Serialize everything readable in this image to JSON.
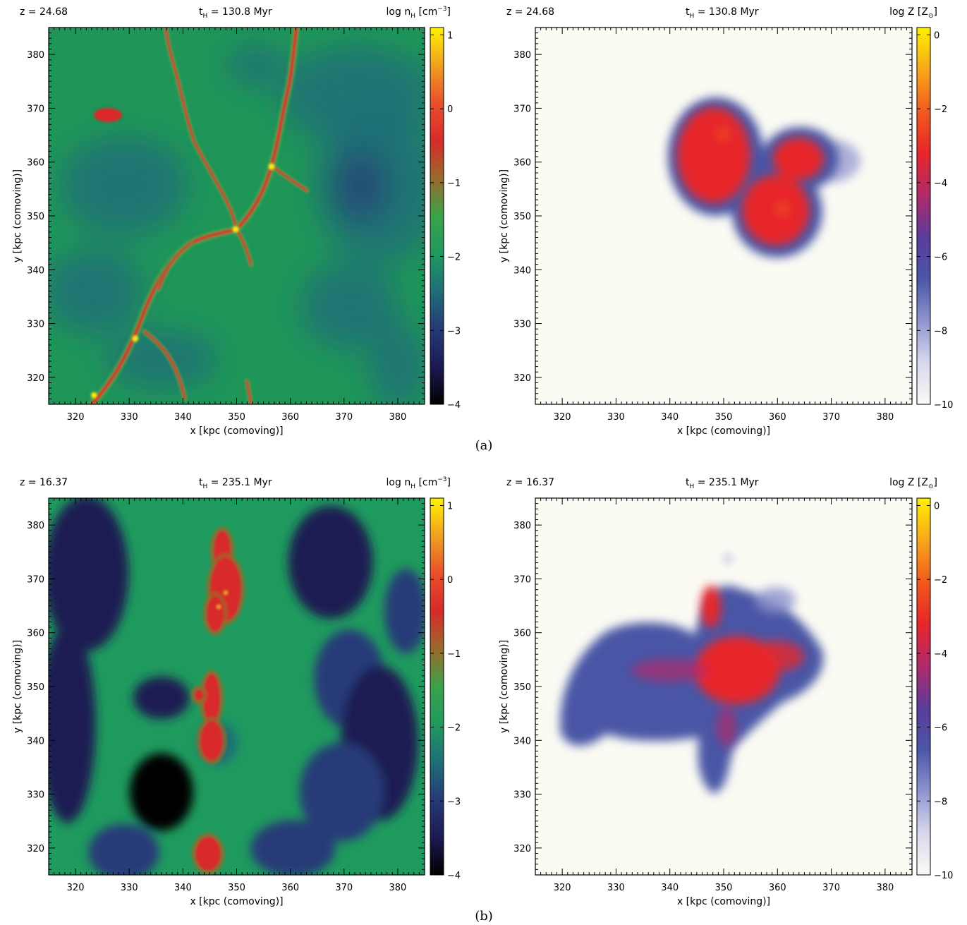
{
  "panels": [
    {
      "id": "a-density",
      "caption": "(a)",
      "header_left": "z = 24.68",
      "header_mid": "t",
      "header_mid_sub": "H",
      "header_mid_rest": " = 130.8 Myr",
      "header_right": "log n",
      "header_right_sub": "H",
      "header_right_unit": " [cm",
      "header_right_sup": "−3",
      "header_right_close": "]",
      "xlabel": "x [kpc (comoving)]",
      "ylabel": "y [kpc (comoving)]",
      "field": "density",
      "colorbar": "density"
    },
    {
      "id": "a-metallicity",
      "caption": "",
      "header_left": "z = 24.68",
      "header_mid": "t",
      "header_mid_sub": "H",
      "header_mid_rest": " = 130.8 Myr",
      "header_right": "log Z [Z",
      "header_right_sub": "⊙",
      "header_right_unit": "]",
      "header_right_sup": "",
      "header_right_close": "",
      "xlabel": "x [kpc (comoving)]",
      "ylabel": "y [kpc (comoving)]",
      "field": "metal-a",
      "colorbar": "metal"
    },
    {
      "id": "b-density",
      "caption": "(b)",
      "header_left": "z = 16.37",
      "header_mid": "t",
      "header_mid_sub": "H",
      "header_mid_rest": " = 235.1 Myr",
      "header_right": "log n",
      "header_right_sub": "H",
      "header_right_unit": " [cm",
      "header_right_sup": "−3",
      "header_right_close": "]",
      "xlabel": "x [kpc (comoving)]",
      "ylabel": "y [kpc (comoving)]",
      "field": "density-b",
      "colorbar": "density"
    },
    {
      "id": "b-metallicity",
      "caption": "",
      "header_left": "z = 16.37",
      "header_mid": "t",
      "header_mid_sub": "H",
      "header_mid_rest": " = 235.1 Myr",
      "header_right": "log Z [Z",
      "header_right_sub": "⊙",
      "header_right_unit": "]",
      "header_right_sup": "",
      "header_right_close": "",
      "xlabel": "x [kpc (comoving)]",
      "ylabel": "y [kpc (comoving)]",
      "field": "metal-b",
      "colorbar": "metal"
    }
  ],
  "captions": {
    "a": "(a)",
    "b": "(b)"
  },
  "colors": {
    "density_stops": [
      "#000000",
      "#1c1a52",
      "#263a78",
      "#1f6e78",
      "#1f9a5e",
      "#3aa24a",
      "#9a6a2a",
      "#d82a2a",
      "#e8502a",
      "#f0a020",
      "#fff200"
    ],
    "metal_stops": [
      "#fbfbf5",
      "#d8d8ee",
      "#8f94cf",
      "#4a56a6",
      "#5a3c9a",
      "#b02a6a",
      "#e8262a",
      "#f25a1e",
      "#f8a81a",
      "#fff000"
    ],
    "metal_background": "#fbfbf4"
  },
  "chart_data": [
    {
      "type": "heatmap",
      "title": "",
      "xlabel": "x [kpc (comoving)]",
      "ylabel": "y [kpc (comoving)]",
      "xlim": [
        315,
        385
      ],
      "ylim": [
        315,
        385
      ],
      "x_ticks": [
        320,
        330,
        340,
        350,
        360,
        370,
        380
      ],
      "y_ticks": [
        320,
        330,
        340,
        350,
        360,
        370,
        380
      ],
      "colorbar_label": "log nH [cm^-3]",
      "colorbar_range": [
        -4,
        1.1
      ],
      "colorbar_ticks": [
        -4,
        -3,
        -2,
        -1,
        0,
        1
      ],
      "annotations": [
        "z = 24.68",
        "tH = 130.8 Myr"
      ]
    },
    {
      "type": "heatmap",
      "title": "",
      "xlabel": "x [kpc (comoving)]",
      "ylabel": "y [kpc (comoving)]",
      "xlim": [
        315,
        385
      ],
      "ylim": [
        315,
        385
      ],
      "x_ticks": [
        320,
        330,
        340,
        350,
        360,
        370,
        380
      ],
      "y_ticks": [
        320,
        330,
        340,
        350,
        360,
        370,
        380
      ],
      "colorbar_label": "log Z [Z⊙]",
      "colorbar_range": [
        -10,
        0.2
      ],
      "colorbar_ticks": [
        -10,
        -8,
        -6,
        -4,
        -2,
        0
      ],
      "annotations": [
        "z = 24.68",
        "tH = 130.8 Myr"
      ]
    },
    {
      "type": "heatmap",
      "title": "",
      "xlabel": "x [kpc (comoving)]",
      "ylabel": "y [kpc (comoving)]",
      "xlim": [
        315,
        385
      ],
      "ylim": [
        315,
        385
      ],
      "x_ticks": [
        320,
        330,
        340,
        350,
        360,
        370,
        380
      ],
      "y_ticks": [
        320,
        330,
        340,
        350,
        360,
        370,
        380
      ],
      "colorbar_label": "log nH [cm^-3]",
      "colorbar_range": [
        -4,
        1.1
      ],
      "colorbar_ticks": [
        -4,
        -3,
        -2,
        -1,
        0,
        1
      ],
      "annotations": [
        "z = 16.37",
        "tH = 235.1 Myr"
      ]
    },
    {
      "type": "heatmap",
      "title": "",
      "xlabel": "x [kpc (comoving)]",
      "ylabel": "y [kpc (comoving)]",
      "xlim": [
        315,
        385
      ],
      "ylim": [
        315,
        385
      ],
      "x_ticks": [
        320,
        330,
        340,
        350,
        360,
        370,
        380
      ],
      "y_ticks": [
        320,
        330,
        340,
        350,
        360,
        370,
        380
      ],
      "colorbar_label": "log Z [Z⊙]",
      "colorbar_range": [
        -10,
        0.2
      ],
      "colorbar_ticks": [
        -10,
        -8,
        -6,
        -4,
        -2,
        0
      ],
      "annotations": [
        "z = 16.37",
        "tH = 235.1 Myr"
      ]
    }
  ]
}
